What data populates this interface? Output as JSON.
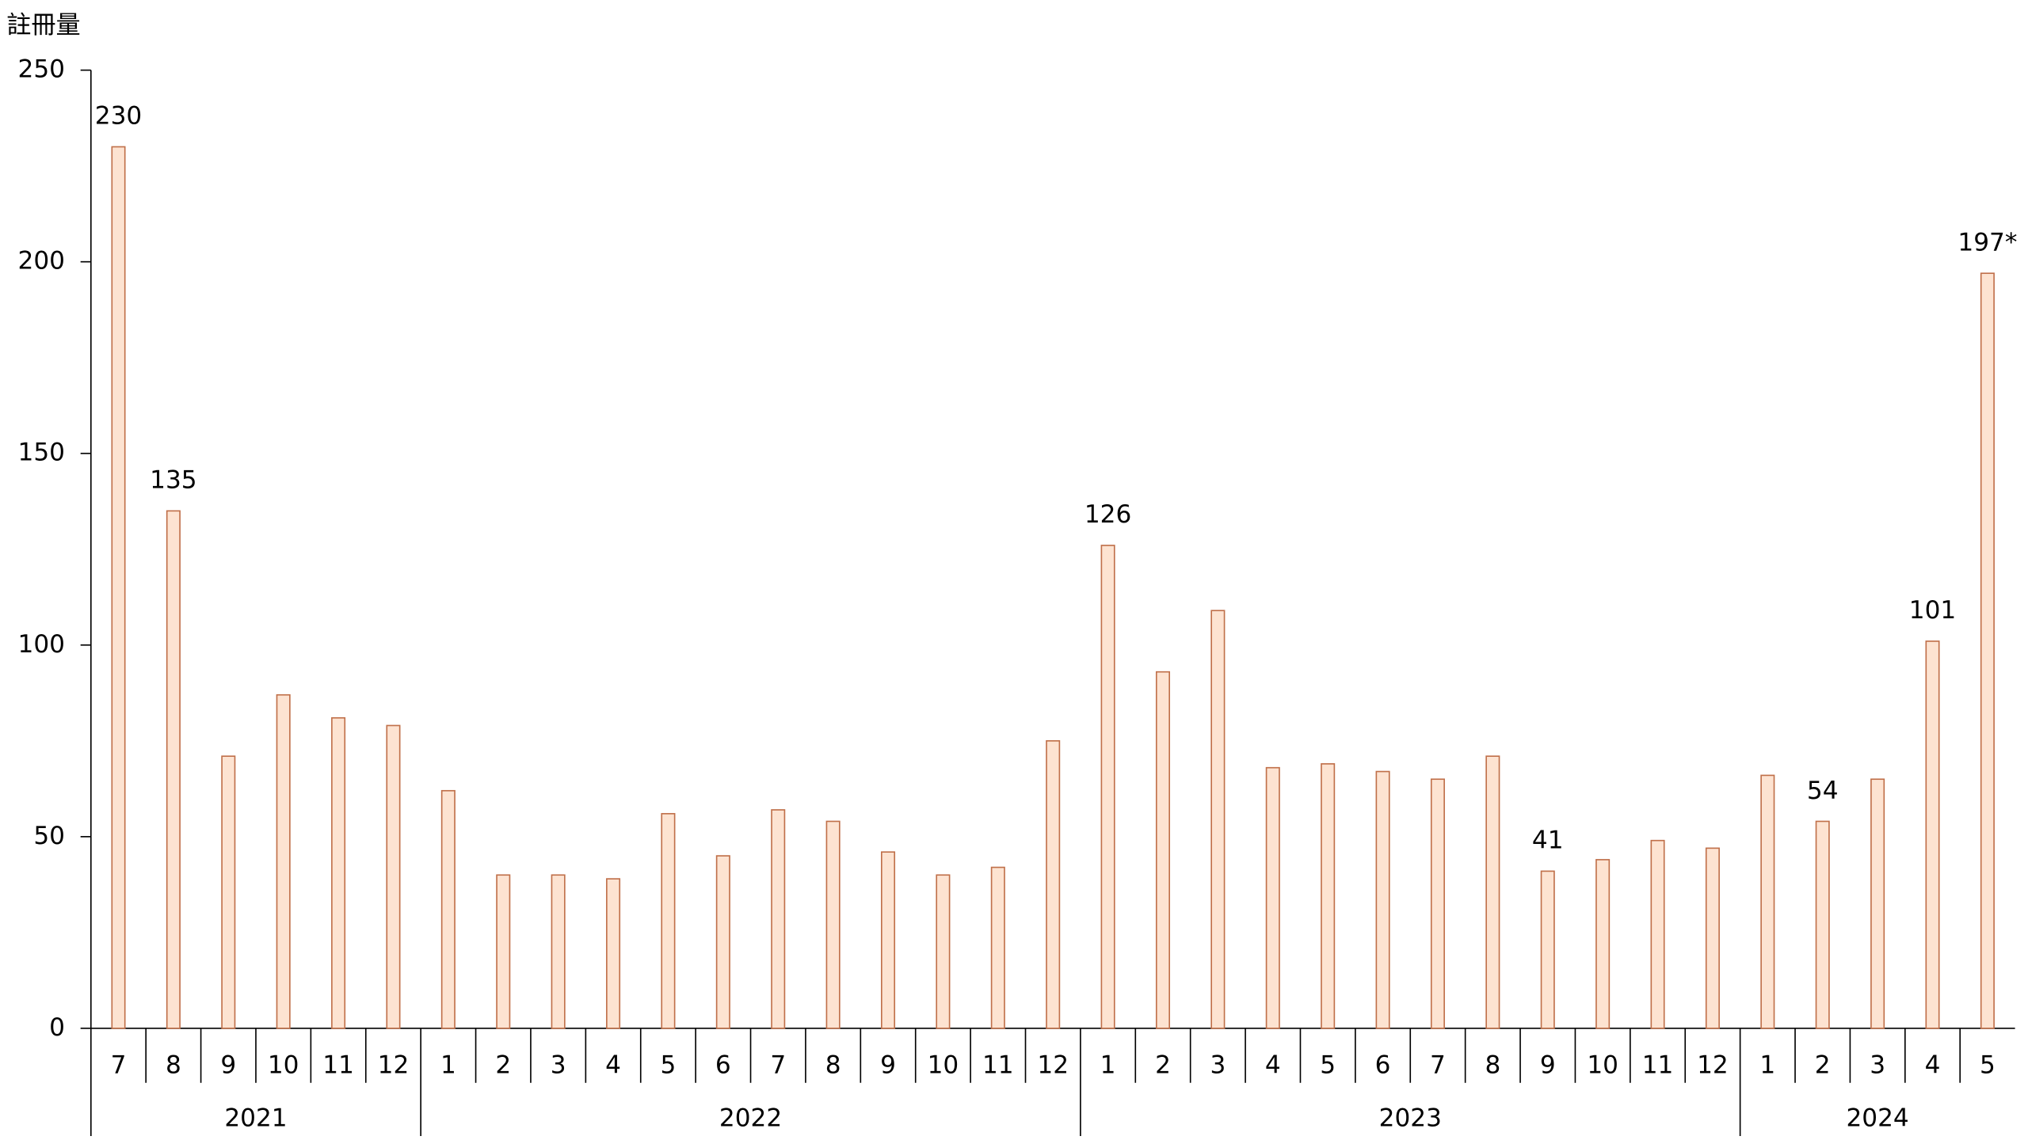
{
  "chart_data": {
    "type": "bar",
    "y_label": "註冊量",
    "categories": [
      "7",
      "8",
      "9",
      "10",
      "11",
      "12",
      "1",
      "2",
      "3",
      "4",
      "5",
      "6",
      "7",
      "8",
      "9",
      "10",
      "11",
      "12",
      "1",
      "2",
      "3",
      "4",
      "5",
      "6",
      "7",
      "8",
      "9",
      "10",
      "11",
      "12",
      "1",
      "2",
      "3",
      "4",
      "5"
    ],
    "groups": [
      "2021",
      "2022",
      "2023",
      "2024"
    ],
    "values": [
      230,
      135,
      71,
      87,
      81,
      79,
      62,
      40,
      40,
      39,
      56,
      45,
      57,
      54,
      46,
      40,
      42,
      75,
      126,
      93,
      109,
      68,
      69,
      67,
      65,
      71,
      41,
      44,
      49,
      47,
      66,
      54,
      65,
      101,
      197
    ],
    "value_labels": [
      "230",
      "135",
      null,
      null,
      null,
      null,
      null,
      null,
      null,
      null,
      null,
      null,
      null,
      null,
      null,
      null,
      null,
      null,
      "126",
      null,
      null,
      null,
      null,
      null,
      null,
      null,
      "41",
      null,
      null,
      null,
      null,
      "54",
      null,
      "101",
      "197*"
    ],
    "color": "#fde3d1",
    "edge_color": "#c0704a",
    "ylim": [
      0,
      250
    ],
    "yticks": [
      0,
      50,
      100,
      150,
      200,
      250
    ],
    "grid": false
  }
}
